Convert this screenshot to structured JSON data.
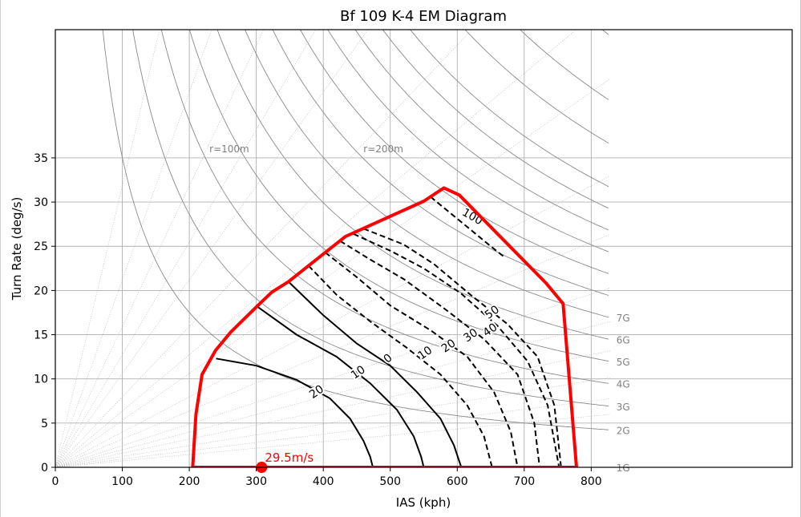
{
  "chart_data": {
    "type": "line",
    "title": "Bf 109 K-4 EM Diagram",
    "xlabel": "IAS (kph)",
    "ylabel": "Turn Rate (deg/s)",
    "xlim": [
      0,
      1100
    ],
    "ylim": [
      0,
      49.5
    ],
    "xticks": [
      0,
      100,
      200,
      300,
      400,
      500,
      600,
      700,
      800
    ],
    "yticks": [
      0,
      5,
      10,
      15,
      20,
      25,
      30,
      35
    ],
    "grid": true,
    "g_lines": [
      {
        "label": "1G",
        "n": 1
      },
      {
        "label": "2G",
        "n": 2
      },
      {
        "label": "3G",
        "n": 3
      },
      {
        "label": "4G",
        "n": 4
      },
      {
        "label": "5G",
        "n": 5
      },
      {
        "label": "6G",
        "n": 6
      },
      {
        "label": "7G",
        "n": 7
      }
    ],
    "radius_labels": [
      {
        "label": "r=100m",
        "r": 100,
        "x": 230,
        "y": 36
      },
      {
        "label": "r=200m",
        "r": 200,
        "x": 460,
        "y": 36
      }
    ],
    "envelope": {
      "color": "#ff0000",
      "points": [
        [
          205,
          0
        ],
        [
          210,
          6
        ],
        [
          219,
          10.5
        ],
        [
          239,
          13.2
        ],
        [
          262,
          15.3
        ],
        [
          301,
          18.2
        ],
        [
          323,
          19.8
        ],
        [
          348,
          21
        ],
        [
          433,
          26.1
        ],
        [
          550,
          30.1
        ],
        [
          580,
          31.6
        ],
        [
          603,
          30.8
        ],
        [
          733,
          20.8
        ],
        [
          758,
          18.5
        ],
        [
          778,
          0
        ]
      ]
    },
    "ps_contours": [
      {
        "label": "20",
        "style": "solid",
        "points": [
          [
            240,
            12.3
          ],
          [
            300,
            11.5
          ],
          [
            360,
            9.9
          ],
          [
            410,
            7.8
          ],
          [
            440,
            5.5
          ],
          [
            460,
            3
          ],
          [
            470,
            1.2
          ],
          [
            474,
            0
          ]
        ]
      },
      {
        "label": "10",
        "style": "solid",
        "points": [
          [
            301,
            18.2
          ],
          [
            360,
            15
          ],
          [
            420,
            12.5
          ],
          [
            470,
            9.5
          ],
          [
            510,
            6.5
          ],
          [
            535,
            3.5
          ],
          [
            546,
            1.2
          ],
          [
            550,
            0
          ]
        ]
      },
      {
        "label": "0",
        "style": "solid",
        "points": [
          [
            348,
            21
          ],
          [
            400,
            17.2
          ],
          [
            450,
            14
          ],
          [
            500,
            11.5
          ],
          [
            540,
            8.5
          ],
          [
            575,
            5.5
          ],
          [
            595,
            2.5
          ],
          [
            606,
            0
          ]
        ]
      },
      {
        "label": "10",
        "style": "dashed",
        "points": [
          [
            378,
            22.8
          ],
          [
            420,
            19.5
          ],
          [
            470,
            16.5
          ],
          [
            525,
            13.5
          ],
          [
            575,
            10.5
          ],
          [
            615,
            7
          ],
          [
            640,
            3.5
          ],
          [
            652,
            0
          ]
        ]
      },
      {
        "label": "20",
        "style": "dashed",
        "points": [
          [
            403,
            24.3
          ],
          [
            450,
            21.5
          ],
          [
            500,
            18.3
          ],
          [
            560,
            15.5
          ],
          [
            615,
            12.5
          ],
          [
            655,
            8.5
          ],
          [
            680,
            4
          ],
          [
            690,
            0
          ]
        ]
      },
      {
        "label": "30",
        "style": "dashed",
        "points": [
          [
            425,
            25.6
          ],
          [
            470,
            23.5
          ],
          [
            520,
            21.3
          ],
          [
            580,
            18
          ],
          [
            640,
            14.5
          ],
          [
            690,
            10.5
          ],
          [
            715,
            5
          ],
          [
            723,
            0
          ]
        ]
      },
      {
        "label": "40",
        "style": "dashed",
        "points": [
          [
            445,
            26.4
          ],
          [
            500,
            24.5
          ],
          [
            550,
            22.5
          ],
          [
            605,
            19.7
          ],
          [
            660,
            16
          ],
          [
            705,
            12
          ],
          [
            735,
            7
          ],
          [
            752,
            0
          ]
        ]
      },
      {
        "label": "50",
        "style": "dashed",
        "points": [
          [
            460,
            27
          ],
          [
            520,
            25.2
          ],
          [
            565,
            23
          ],
          [
            620,
            19.5
          ],
          [
            675,
            16.2
          ],
          [
            720,
            12.5
          ],
          [
            745,
            7
          ],
          [
            755,
            0
          ]
        ]
      },
      {
        "label": "100",
        "style": "dashed",
        "points": [
          [
            560,
            30.6
          ],
          [
            610,
            27.5
          ],
          [
            650,
            25
          ],
          [
            670,
            23.8
          ]
        ]
      }
    ],
    "marker": {
      "label": "29.5m/s",
      "x": 308,
      "y": 0,
      "color": "#ff0000"
    },
    "ps_label_positions": [
      {
        "i": 0,
        "x": 393,
        "y": 8.2
      },
      {
        "i": 1,
        "x": 455,
        "y": 10.4
      },
      {
        "i": 2,
        "x": 500,
        "y": 12
      },
      {
        "i": 3,
        "x": 555,
        "y": 12.6
      },
      {
        "i": 4,
        "x": 590,
        "y": 13.4
      },
      {
        "i": 5,
        "x": 623,
        "y": 14.6
      },
      {
        "i": 6,
        "x": 652,
        "y": 15.2
      },
      {
        "i": 7,
        "x": 655,
        "y": 17.2
      },
      {
        "i": 8,
        "x": 620,
        "y": 28
      }
    ]
  }
}
